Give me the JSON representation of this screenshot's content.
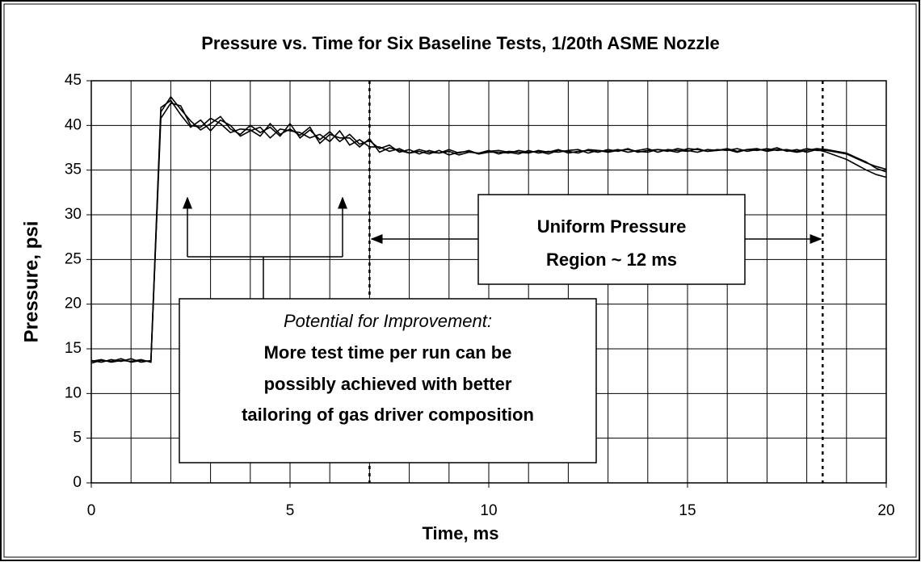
{
  "chart_data": {
    "type": "line",
    "title": "Pressure vs. Time for Six Baseline Tests, 1/20th ASME Nozzle",
    "x_label": "Time, ms",
    "y_label": "Pressure, psi",
    "xlim": [
      0,
      20
    ],
    "xticks": [
      0,
      5,
      10,
      15,
      20
    ],
    "xgrid": [
      0,
      1,
      2,
      3,
      4,
      5,
      6,
      7,
      8,
      9,
      10,
      11,
      12,
      13,
      14,
      15,
      16,
      17,
      18,
      19,
      20
    ],
    "ylim": [
      0,
      45
    ],
    "yticks": [
      0,
      5,
      10,
      15,
      20,
      25,
      30,
      35,
      40,
      45
    ],
    "grid": true,
    "markers": [
      7,
      18.4
    ],
    "annotations": {
      "uniform": [
        "Uniform Pressure",
        "Region ~ 12 ms"
      ],
      "improvement": [
        "Potential for Improvement:",
        "More test time per run can be",
        "possibly achieved with better",
        "tailoring of gas driver composition"
      ]
    },
    "x": [
      0,
      0.25,
      0.5,
      0.75,
      1,
      1.25,
      1.5,
      1.75,
      2,
      2.25,
      2.5,
      2.75,
      3,
      3.25,
      3.5,
      3.75,
      4,
      4.25,
      4.5,
      4.75,
      5,
      5.25,
      5.5,
      5.75,
      6,
      6.25,
      6.5,
      6.75,
      7,
      7.25,
      7.5,
      7.75,
      8,
      8.25,
      8.5,
      8.75,
      9,
      9.25,
      9.5,
      9.75,
      10,
      10.25,
      10.5,
      10.75,
      11,
      11.25,
      11.5,
      11.75,
      12,
      12.25,
      12.5,
      12.75,
      13,
      13.25,
      13.5,
      13.75,
      14,
      14.25,
      14.5,
      14.75,
      15,
      15.25,
      15.5,
      15.75,
      16,
      16.25,
      16.5,
      16.75,
      17,
      17.25,
      17.5,
      17.75,
      18,
      18.25,
      18.5,
      18.75,
      19,
      19.25,
      19.5,
      19.75,
      20
    ],
    "series": [
      {
        "color": "#000000",
        "values": [
          13.6,
          13.8,
          13.5,
          13.7,
          13.6,
          13.8,
          13.5,
          41.5,
          43.2,
          41.8,
          40.5,
          39.5,
          40.2,
          41.0,
          39.6,
          39.0,
          40.0,
          39.2,
          39.8,
          38.8,
          40.2,
          38.6,
          39.5,
          38.4,
          39.3,
          38.2,
          39.0,
          37.9,
          38.3,
          37.4,
          37.8,
          37.0,
          37.3,
          36.8,
          37.2,
          36.9,
          37.1,
          36.7,
          37.0,
          36.9,
          37.2,
          36.8,
          37.1,
          37.0,
          36.9,
          37.2,
          37.0,
          37.3,
          36.9,
          37.1,
          37.2,
          37.0,
          37.3,
          37.1,
          37.4,
          37.0,
          37.2,
          37.3,
          37.1,
          37.4,
          37.2,
          37.0,
          37.3,
          37.2,
          37.4,
          37.1,
          37.3,
          37.2,
          37.4,
          37.2,
          37.3,
          37.1,
          37.4,
          37.2,
          37.2,
          37.0,
          36.8,
          36.3,
          35.8,
          35.4,
          35.1
        ]
      },
      {
        "color": "#000000",
        "values": [
          13.4,
          13.7,
          13.6,
          13.9,
          13.5,
          13.7,
          13.6,
          40.8,
          42.5,
          42.2,
          40.0,
          39.8,
          40.8,
          40.2,
          39.2,
          39.6,
          39.5,
          38.8,
          40.2,
          39.0,
          39.6,
          38.9,
          39.8,
          38.0,
          39.0,
          38.6,
          38.6,
          37.6,
          38.5,
          37.0,
          37.5,
          37.2,
          36.9,
          37.1,
          36.8,
          37.2,
          36.7,
          37.0,
          37.1,
          36.8,
          37.0,
          37.0,
          36.9,
          37.2,
          37.0,
          37.1,
          36.8,
          37.2,
          37.1,
          36.9,
          37.3,
          37.2,
          37.1,
          37.3,
          37.0,
          37.2,
          37.4,
          37.0,
          37.3,
          37.2,
          37.1,
          37.4,
          37.1,
          37.3,
          37.2,
          37.4,
          37.1,
          37.3,
          37.2,
          37.5,
          37.1,
          37.3,
          37.0,
          37.3,
          37.0,
          36.6,
          36.2,
          35.6,
          35.0,
          34.5,
          34.2
        ]
      },
      {
        "color": "#000000",
        "values": [
          13.7,
          13.5,
          13.8,
          13.6,
          13.9,
          13.5,
          13.7,
          42.0,
          42.8,
          41.2,
          39.8,
          40.6,
          39.4,
          40.6,
          40.0,
          38.8,
          39.4,
          39.8,
          38.6,
          39.6,
          39.4,
          39.2,
          38.6,
          39.0,
          38.2,
          39.4,
          37.8,
          38.4,
          37.6,
          37.6,
          37.1,
          37.4,
          36.9,
          37.3,
          37.0,
          36.9,
          37.3,
          36.9,
          37.2,
          36.8,
          37.1,
          37.2,
          37.0,
          36.8,
          37.2,
          36.9,
          37.1,
          37.0,
          37.2,
          37.3,
          36.9,
          37.2,
          37.0,
          37.2,
          37.3,
          37.1,
          37.0,
          37.3,
          37.2,
          37.0,
          37.4,
          37.3,
          37.1,
          37.2,
          37.3,
          37.0,
          37.3,
          37.4,
          37.1,
          37.3,
          37.2,
          37.0,
          37.2,
          37.4,
          37.3,
          37.1,
          36.9,
          36.4,
          35.9,
          35.2,
          34.8
        ]
      }
    ]
  }
}
